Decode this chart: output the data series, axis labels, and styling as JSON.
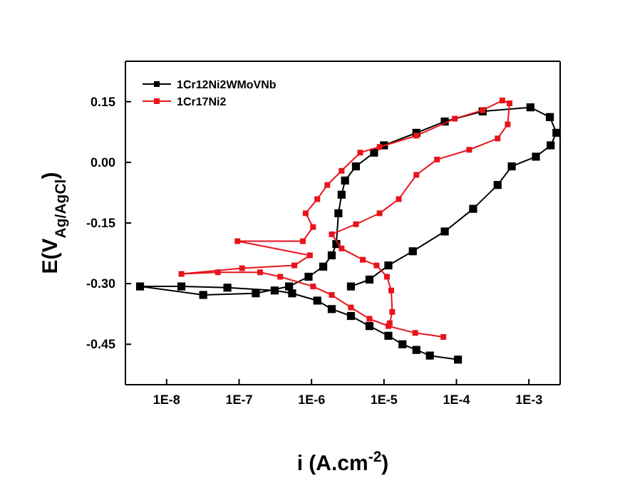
{
  "chart_data": {
    "type": "line",
    "xlabel": "i (A.cm$^{-2}$)",
    "ylabel": "E(V$_{Ag/AgCl}$)",
    "log": "x",
    "xlim": [
      2.7e-09,
      0.0027
    ],
    "xticks": [
      {
        "value": 1e-08,
        "label": "1E-8"
      },
      {
        "value": 1e-07,
        "label": "1E-7"
      },
      {
        "value": 1e-06,
        "label": "1E-6"
      },
      {
        "value": 1e-05,
        "label": "1E-5"
      },
      {
        "value": 0.0001,
        "label": "1E-4"
      },
      {
        "value": 0.001,
        "label": "1E-3"
      }
    ],
    "ylim": [
      -0.55,
      0.25
    ],
    "yticks": [
      0.15,
      {
        "value": 0,
        "label": "0.00"
      },
      -0.15,
      {
        "value": -0.3,
        "label": "-0.30"
      },
      -0.45
    ],
    "grid": false,
    "legend": "top left",
    "marker": "square",
    "line_style": "solid",
    "series": [
      {
        "name": "1Cr12Ni2WMoVNb",
        "color": "#000000",
        "x": [
          0.000105,
          4.3e-05,
          2.8e-05,
          1.8e-05,
          1.15e-05,
          6.3e-06,
          3.5e-06,
          1.9e-06,
          1.2e-06,
          5.4e-07,
          3.1e-07,
          6.9e-08,
          1.6e-08,
          4.3e-09,
          3.2e-08,
          1.7e-07,
          4.9e-07,
          9.1e-07,
          1.45e-06,
          1.9e-06,
          2.2e-06,
          2.35e-06,
          2.6e-06,
          2.9e-06,
          4.1e-06,
          7.3e-06,
          1e-05,
          2.8e-05,
          6.9e-05,
          0.00023,
          0.00105,
          0.00195,
          0.0024,
          0.002,
          0.00125,
          0.00058,
          0.00037,
          0.00017,
          6.9e-05,
          2.5e-05,
          1.15e-05,
          6.3e-06,
          3.5e-06
        ],
        "values": [
          -0.488,
          -0.478,
          -0.464,
          -0.45,
          -0.429,
          -0.405,
          -0.38,
          -0.363,
          -0.342,
          -0.324,
          -0.317,
          -0.31,
          -0.307,
          -0.307,
          -0.328,
          -0.324,
          -0.307,
          -0.283,
          -0.258,
          -0.23,
          -0.202,
          -0.126,
          -0.08,
          -0.045,
          -0.01,
          0.024,
          0.042,
          0.073,
          0.101,
          0.126,
          0.136,
          0.112,
          0.073,
          0.042,
          0.014,
          -0.01,
          -0.056,
          -0.115,
          -0.171,
          -0.22,
          -0.255,
          -0.29,
          -0.307
        ]
      },
      {
        "name": "1Cr17Ni2",
        "color": "#e8141c",
        "x": [
          6.6e-05,
          2.7e-05,
          1.15e-05,
          6.3e-06,
          3.5e-06,
          1.9e-06,
          1.05e-06,
          3.7e-07,
          1.95e-07,
          5.1e-08,
          1.6e-08,
          1.1e-07,
          5.8e-07,
          9.5e-07,
          9.5e-08,
          7.6e-07,
          1.05e-06,
          8.3e-07,
          1.2e-06,
          1.65e-06,
          2.6e-06,
          4.7e-06,
          8.7e-06,
          2.8e-05,
          9.5e-05,
          0.00023,
          0.00043,
          0.00054,
          0.00051,
          0.00037,
          0.00015,
          5.4e-05,
          2.8e-05,
          1.6e-05,
          8.7e-06,
          4.1e-06,
          1.9e-06,
          2.6e-06,
          5.1e-06,
          7.9e-06,
          1.1e-05,
          1.26e-05,
          1.3e-05,
          1.2e-05
        ],
        "values": [
          -0.432,
          -0.422,
          -0.405,
          -0.387,
          -0.359,
          -0.328,
          -0.307,
          -0.283,
          -0.272,
          -0.272,
          -0.276,
          -0.262,
          -0.255,
          -0.23,
          -0.195,
          -0.195,
          -0.16,
          -0.126,
          -0.091,
          -0.056,
          -0.021,
          0.024,
          0.038,
          0.066,
          0.108,
          0.129,
          0.153,
          0.146,
          0.094,
          0.059,
          0.031,
          0.007,
          -0.031,
          -0.091,
          -0.126,
          -0.153,
          -0.178,
          -0.213,
          -0.241,
          -0.255,
          -0.283,
          -0.317,
          -0.37,
          -0.398
        ]
      }
    ]
  }
}
